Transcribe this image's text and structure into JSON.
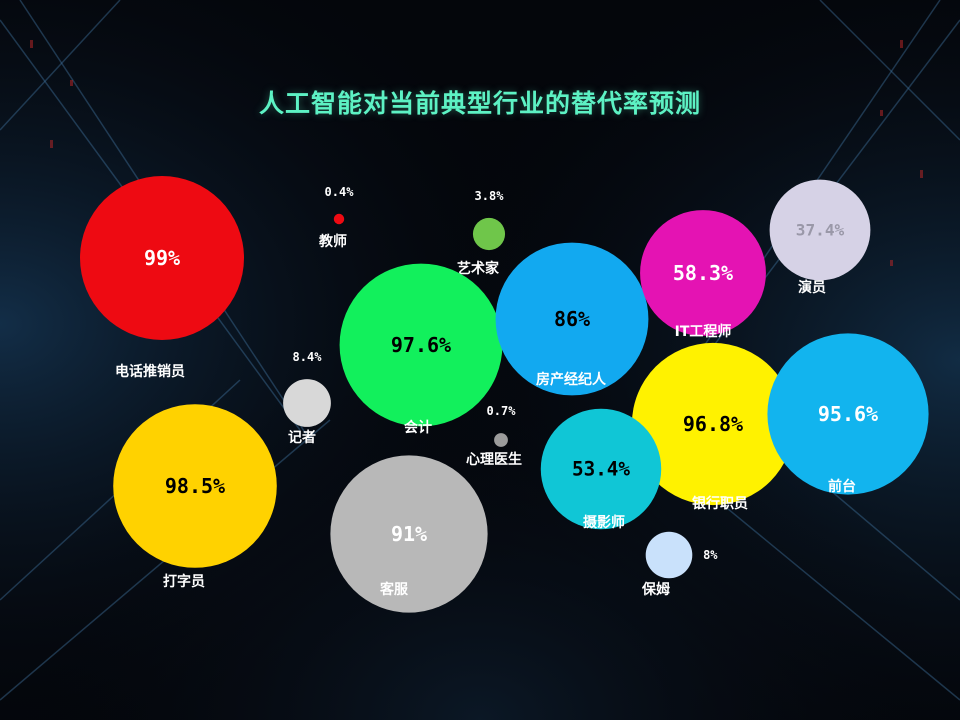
{
  "chart_data": {
    "type": "scatter",
    "title": "人工智能对当前典型行业的替代率预测",
    "bubbles": [
      {
        "name": "电话推销员",
        "label": "99%",
        "value": 99,
        "color": "#ee0a12",
        "label_color": "#ffffff"
      },
      {
        "name": "教师",
        "label": "0.4%",
        "value": 0.4,
        "color": "#ee0a12",
        "label_color": "#ffffff"
      },
      {
        "name": "艺术家",
        "label": "3.8%",
        "value": 3.8,
        "color": "#6fc64a",
        "label_color": "#ffffff"
      },
      {
        "name": "会计",
        "label": "97.6%",
        "value": 97.6,
        "color": "#12f05c",
        "label_color": "#000000"
      },
      {
        "name": "房产经纪人",
        "label": "86%",
        "value": 86,
        "color": "#12a9f0",
        "label_color": "#000000"
      },
      {
        "name": "IT工程师",
        "label": "58.3%",
        "value": 58.3,
        "color": "#e413b3",
        "label_color": "#ffffff"
      },
      {
        "name": "演员",
        "label": "37.4%",
        "value": 37.4,
        "color": "#d6d2e6",
        "label_color": "#9a98a8"
      },
      {
        "name": "记者",
        "label": "8.4%",
        "value": 8.4,
        "color": "#d8d8d8",
        "label_color": "#ffffff"
      },
      {
        "name": "心理医生",
        "label": "0.7%",
        "value": 0.7,
        "color": "#9c9c9c",
        "label_color": "#ffffff"
      },
      {
        "name": "银行职员",
        "label": "96.8%",
        "value": 96.8,
        "color": "#fff200",
        "label_color": "#000000"
      },
      {
        "name": "前台",
        "label": "95.6%",
        "value": 95.6,
        "color": "#12b4ee",
        "label_color": "#ffffff"
      },
      {
        "name": "打字员",
        "label": "98.5%",
        "value": 98.5,
        "color": "#ffd200",
        "label_color": "#000000"
      },
      {
        "name": "客服",
        "label": "91%",
        "value": 91,
        "color": "#b8b8b8",
        "label_color": "#ffffff"
      },
      {
        "name": "摄影师",
        "label": "53.4%",
        "value": 53.4,
        "color": "#10c6d6",
        "label_color": "#000000"
      },
      {
        "name": "保姆",
        "label": "8%",
        "value": 8,
        "color": "#c9e1fb",
        "label_color": "#ffffff"
      }
    ]
  }
}
